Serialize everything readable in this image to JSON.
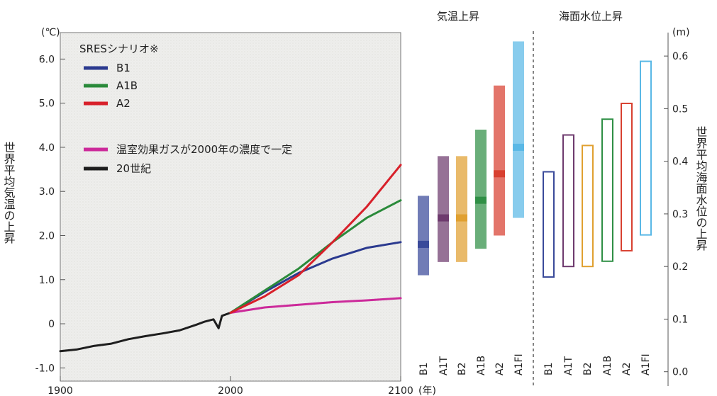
{
  "chart_data": [
    {
      "type": "line",
      "ylabel": "世界平均気温の上昇",
      "yunit": "(℃)",
      "xunit": "(年)",
      "ylim": [
        -1.3,
        6.6
      ],
      "xlim": [
        1900,
        2100
      ],
      "yticks": [
        "-1.0",
        "0",
        "1.0",
        "2.0",
        "3.0",
        "4.0",
        "5.0",
        "6.0"
      ],
      "xticks": [
        "1900",
        "2000",
        "2100"
      ],
      "legend_title": "SRESシナリオ※",
      "legend_position": "top-left",
      "grid": false,
      "series": [
        {
          "name": "B1",
          "color": "#2b3a8f",
          "x": [
            2000,
            2020,
            2040,
            2060,
            2080,
            2100
          ],
          "y": [
            0.25,
            0.72,
            1.15,
            1.48,
            1.72,
            1.85
          ]
        },
        {
          "name": "A1B",
          "color": "#2a8a3a",
          "x": [
            2000,
            2020,
            2040,
            2060,
            2080,
            2100
          ],
          "y": [
            0.25,
            0.75,
            1.25,
            1.85,
            2.4,
            2.8
          ]
        },
        {
          "name": "A2",
          "color": "#d8202a",
          "x": [
            2000,
            2020,
            2040,
            2060,
            2080,
            2100
          ],
          "y": [
            0.25,
            0.62,
            1.1,
            1.85,
            2.65,
            3.6
          ]
        },
        {
          "name": "温室効果ガスが2000年の濃度で一定",
          "color": "#cc2a9a",
          "x": [
            2000,
            2020,
            2040,
            2060,
            2080,
            2100
          ],
          "y": [
            0.25,
            0.37,
            0.43,
            0.49,
            0.53,
            0.58
          ]
        },
        {
          "name": "20世紀",
          "color": "#1e1e1e",
          "x": [
            1900,
            1910,
            1920,
            1930,
            1940,
            1950,
            1960,
            1970,
            1980,
            1985,
            1990,
            1993,
            1995,
            2000
          ],
          "y": [
            -0.62,
            -0.58,
            -0.5,
            -0.45,
            -0.35,
            -0.28,
            -0.22,
            -0.15,
            -0.02,
            0.05,
            0.1,
            -0.1,
            0.18,
            0.25
          ]
        }
      ]
    },
    {
      "type": "bar",
      "title": "気温上昇",
      "categories": [
        "B1",
        "A1T",
        "B2",
        "A1B",
        "A2",
        "A1FI"
      ],
      "unit": "℃",
      "low": [
        1.1,
        1.4,
        1.4,
        1.7,
        2.0,
        2.4
      ],
      "high": [
        2.9,
        3.8,
        3.8,
        4.4,
        5.4,
        6.4
      ],
      "best": [
        1.8,
        2.4,
        2.4,
        2.8,
        3.4,
        4.0
      ],
      "colors": [
        "#3a4a9a",
        "#6e3a6e",
        "#e0a030",
        "#2f8f45",
        "#d84030",
        "#5ab8e6"
      ]
    },
    {
      "type": "bar",
      "title": "海面水位上昇",
      "ylabel": "世界平均海面水位の上昇",
      "yunit": "(m)",
      "ylim": [
        -0.03,
        0.65
      ],
      "yticks": [
        "0.0",
        "0.1",
        "0.2",
        "0.3",
        "0.4",
        "0.5",
        "0.6"
      ],
      "categories": [
        "B1",
        "A1T",
        "B2",
        "A1B",
        "A2",
        "A1FI"
      ],
      "low": [
        0.18,
        0.2,
        0.2,
        0.21,
        0.23,
        0.26
      ],
      "high": [
        0.38,
        0.45,
        0.43,
        0.48,
        0.51,
        0.59
      ],
      "colors": [
        "#3a4a9a",
        "#6e3a6e",
        "#e0a030",
        "#2f8f45",
        "#d84030",
        "#5ab8e6"
      ]
    }
  ]
}
